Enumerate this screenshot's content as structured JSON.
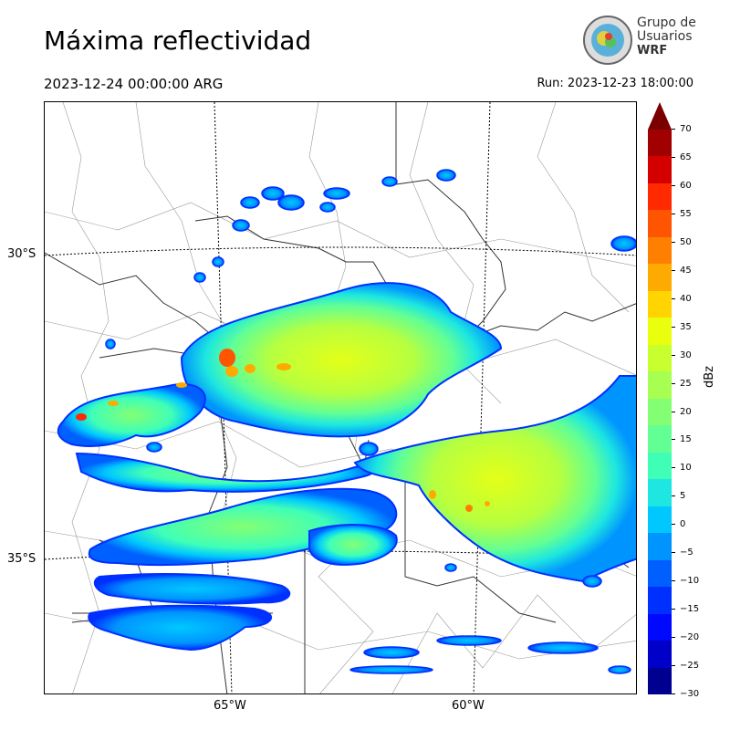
{
  "header": {
    "title": "Máxima reflectividad",
    "valid_time": "2023-12-24 00:00:00 ARG",
    "run_time": "Run: 2023-12-23 18:00:00"
  },
  "logo": {
    "line1": "Grupo de",
    "line2": "Usuarios",
    "line3": "WRF"
  },
  "map": {
    "lat_labels": [
      "30°S",
      "35°S"
    ],
    "lon_labels": [
      "65°W",
      "60°W"
    ]
  },
  "colorbar": {
    "label": "dBz",
    "ticks": [
      "70",
      "65",
      "60",
      "55",
      "50",
      "45",
      "40",
      "35",
      "30",
      "25",
      "20",
      "15",
      "10",
      "5",
      "0",
      "−5",
      "−10",
      "−15",
      "−20",
      "−25",
      "−30"
    ],
    "colors": [
      "#a00000",
      "#d40000",
      "#ff2a00",
      "#ff5500",
      "#ff8000",
      "#ffaa00",
      "#ffd400",
      "#eaff0d",
      "#c8ff2f",
      "#a6ff51",
      "#84ff73",
      "#62ff95",
      "#3fffb7",
      "#1de7e0",
      "#00c8ff",
      "#0094ff",
      "#0060ff",
      "#0030ff",
      "#0008ff",
      "#0000c8",
      "#000090"
    ],
    "top_color": "#7a0000"
  }
}
